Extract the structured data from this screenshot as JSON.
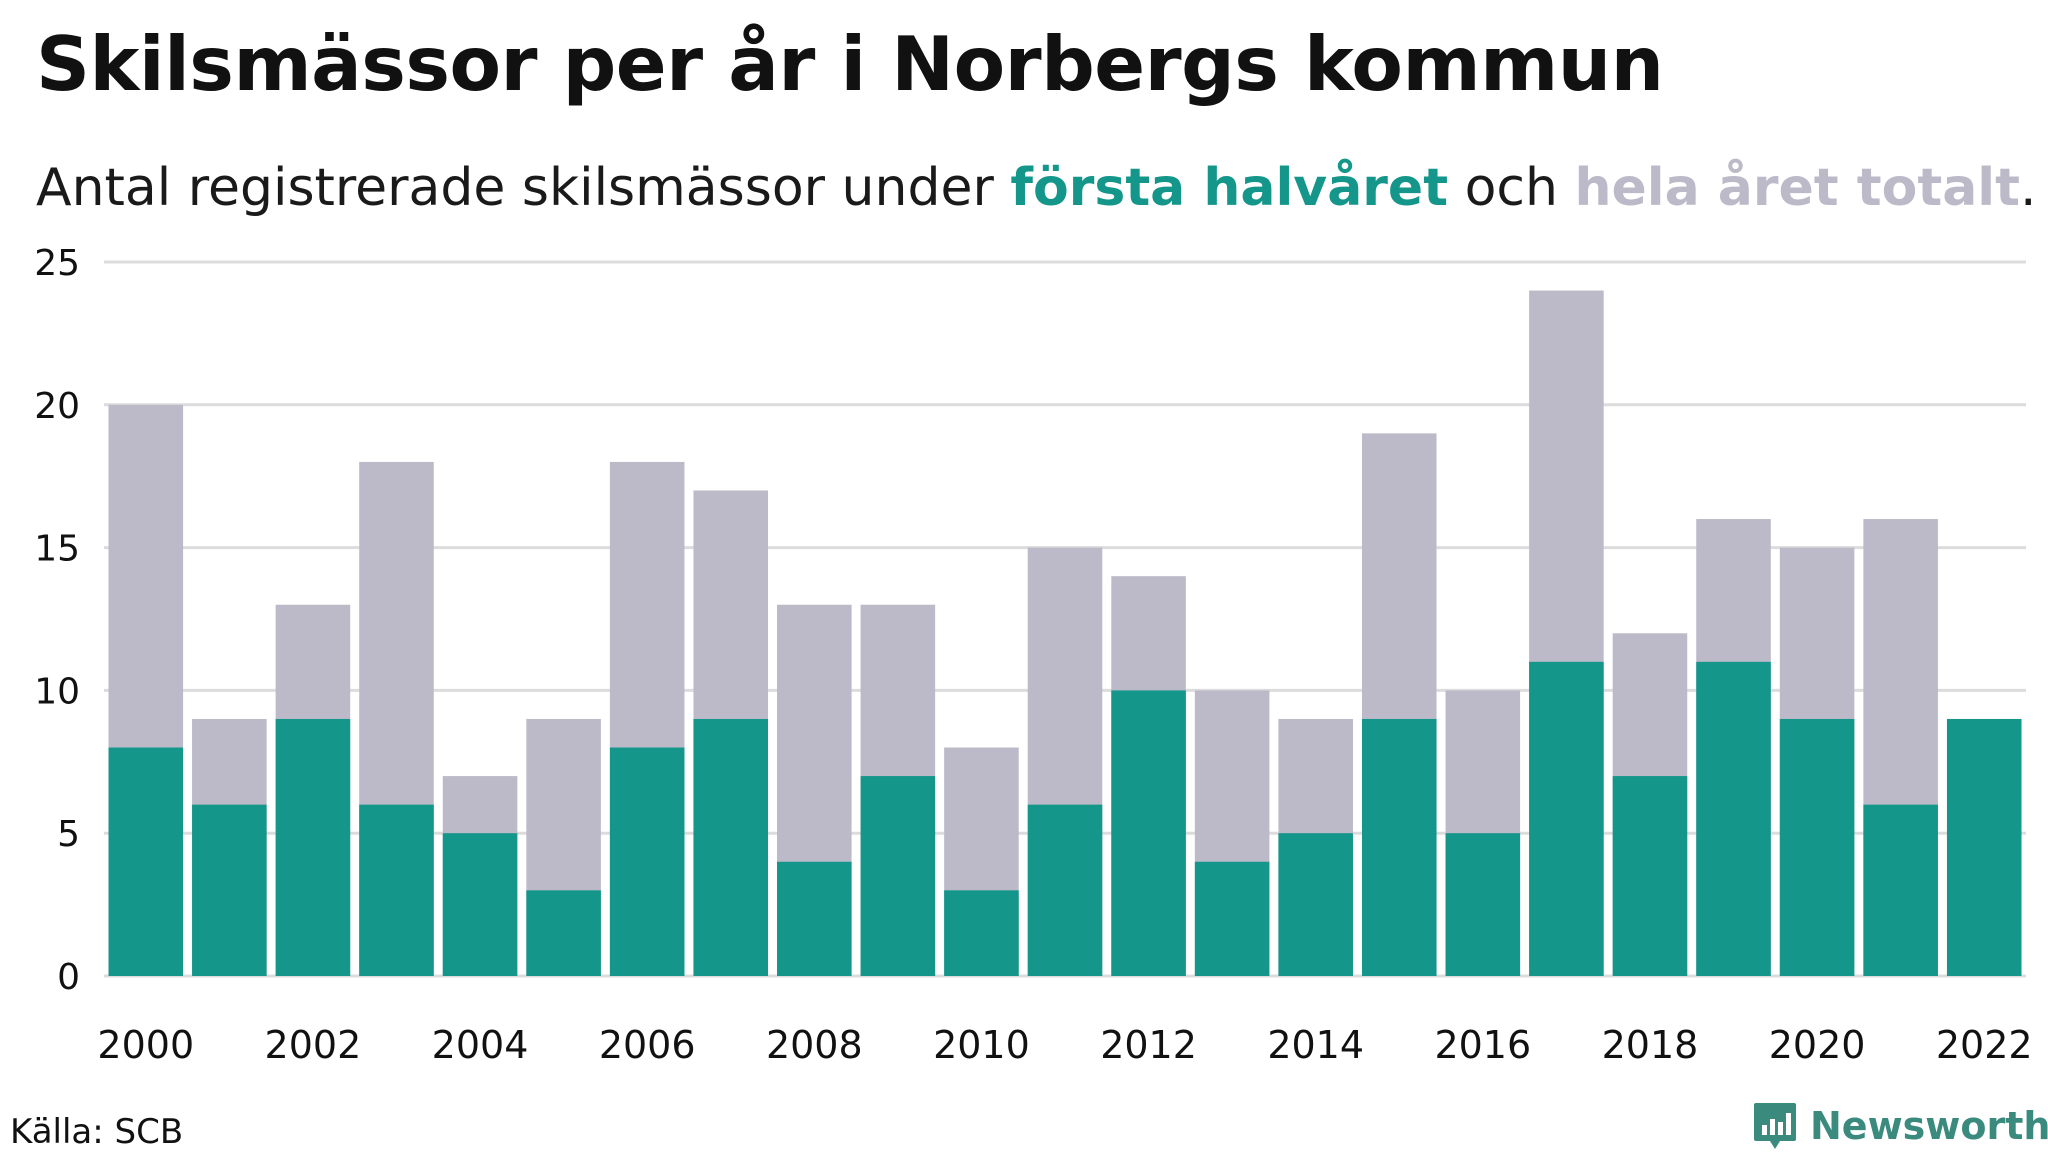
{
  "title": "Skilsmässor per år i Norbergs kommun",
  "subtitle": {
    "prefix": "Antal registrerade skilsmässor under ",
    "highlight_first": "första halvåret",
    "middle": " och ",
    "highlight_total": "hela året totalt",
    "suffix": "."
  },
  "colors": {
    "first_half": "#14968a",
    "full_year": "#bcbac8",
    "grid": "#dcdcdc",
    "text": "#111111"
  },
  "chart_data": {
    "type": "bar",
    "stacking": "overlay",
    "categories": [
      "2000",
      "2001",
      "2002",
      "2003",
      "2004",
      "2005",
      "2006",
      "2007",
      "2008",
      "2009",
      "2010",
      "2011",
      "2012",
      "2013",
      "2014",
      "2015",
      "2016",
      "2017",
      "2018",
      "2019",
      "2020",
      "2021",
      "2022"
    ],
    "x_tick_labels": [
      "2000",
      "",
      "2002",
      "",
      "2004",
      "",
      "2006",
      "",
      "2008",
      "",
      "2010",
      "",
      "2012",
      "",
      "2014",
      "",
      "2016",
      "",
      "2018",
      "",
      "2020",
      "",
      "2022"
    ],
    "series": [
      {
        "key": "full_year",
        "values": [
          20,
          9,
          13,
          18,
          7,
          9,
          18,
          17,
          13,
          13,
          8,
          15,
          14,
          10,
          9,
          19,
          10,
          24,
          12,
          16,
          15,
          16,
          null
        ]
      },
      {
        "key": "first_half",
        "values": [
          8,
          6,
          9,
          6,
          5,
          3,
          8,
          9,
          4,
          7,
          3,
          6,
          10,
          4,
          5,
          9,
          5,
          11,
          7,
          11,
          9,
          6,
          9
        ]
      }
    ],
    "ylim": [
      0,
      25
    ],
    "y_ticks": [
      0,
      5,
      10,
      15,
      20,
      25
    ],
    "grid": true
  },
  "source": "Källa: SCB",
  "brand": {
    "name": "Newsworthy",
    "icon": "newsworthy-logo-icon"
  }
}
